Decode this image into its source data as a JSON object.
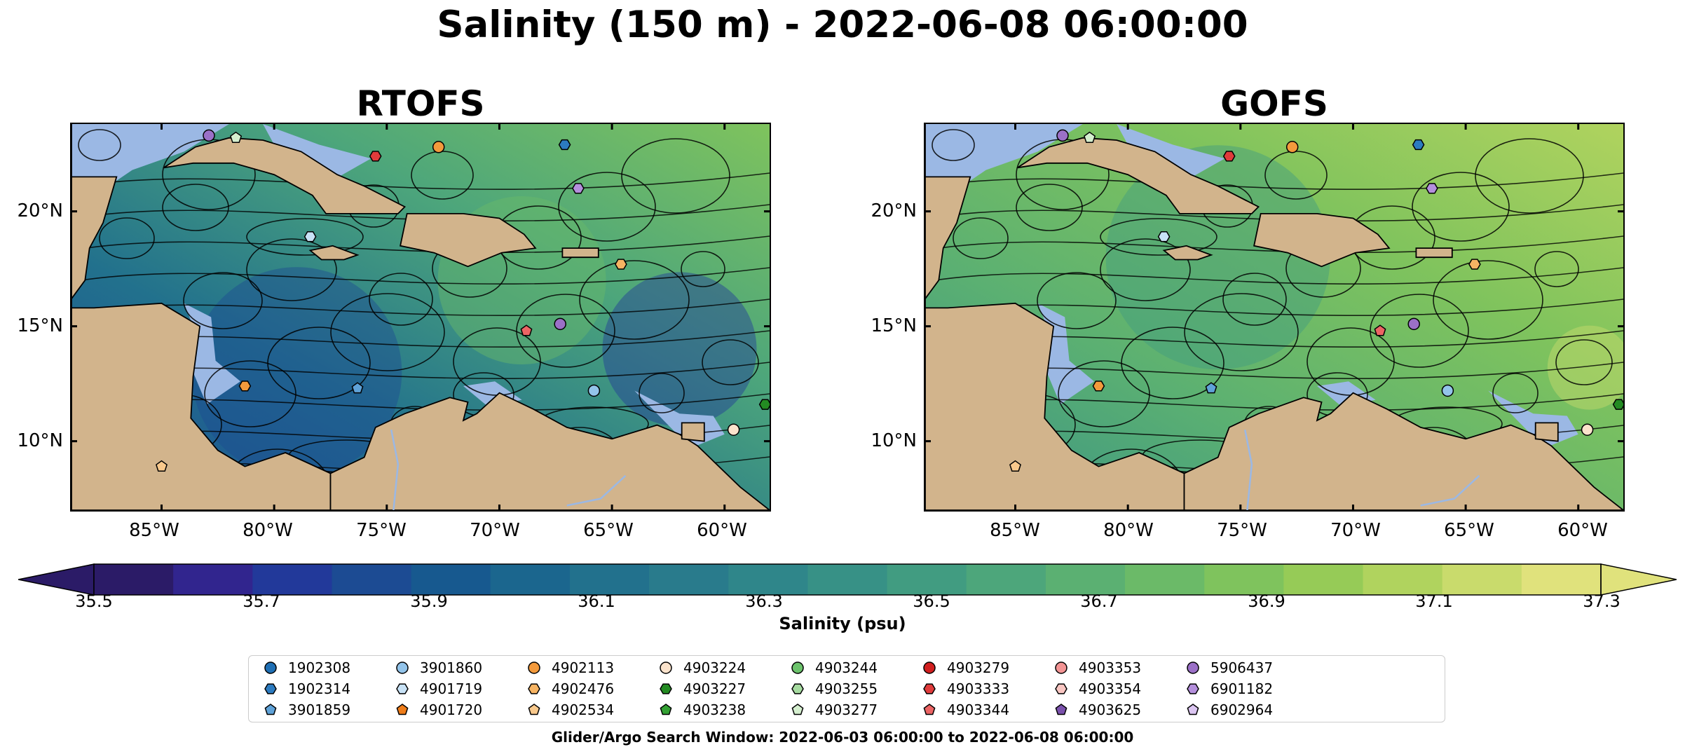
{
  "figure": {
    "title": "Salinity (150 m) - 2022-06-08 06:00:00",
    "panels": [
      {
        "title": "RTOFS",
        "ocean_tint": "#2a6f8f"
      },
      {
        "title": "GOFS",
        "ocean_tint": "#4aa67c"
      }
    ],
    "x_ticks": [
      "85°W",
      "80°W",
      "75°W",
      "70°W",
      "65°W",
      "60°W"
    ],
    "y_ticks": [
      "20°N",
      "15°N",
      "10°N"
    ]
  },
  "colorbar": {
    "label": "Salinity (psu)",
    "ticks": [
      "35.5",
      "35.7",
      "35.9",
      "36.1",
      "36.3",
      "36.5",
      "36.7",
      "36.9",
      "37.1",
      "37.3"
    ],
    "colors": [
      "#2b1b67",
      "#31258e",
      "#22399a",
      "#1c4b93",
      "#17598f",
      "#1b668e",
      "#22718d",
      "#297b8c",
      "#2f868a",
      "#379186",
      "#419c81",
      "#4da67b",
      "#5bb072",
      "#6bba68",
      "#7fc35d",
      "#96cb57",
      "#b0d35e",
      "#c9db6c",
      "#e0e27c"
    ]
  },
  "legend": {
    "items": [
      {
        "id": "1902308",
        "color": "#1f6fb4",
        "marker": "circle"
      },
      {
        "id": "1902314",
        "color": "#2c7bc0",
        "marker": "hexagon"
      },
      {
        "id": "3901859",
        "color": "#5fa2d8",
        "marker": "pentagon"
      },
      {
        "id": "3901860",
        "color": "#93c4ea",
        "marker": "circle"
      },
      {
        "id": "4901719",
        "color": "#c8e2f6",
        "marker": "hexagon"
      },
      {
        "id": "4901720",
        "color": "#ef7d1a",
        "marker": "pentagon"
      },
      {
        "id": "4902113",
        "color": "#f39a3c",
        "marker": "circle"
      },
      {
        "id": "4902476",
        "color": "#f7b463",
        "marker": "hexagon"
      },
      {
        "id": "4902534",
        "color": "#f9c98c",
        "marker": "pentagon"
      },
      {
        "id": "4903224",
        "color": "#fbe3cc",
        "marker": "circle"
      },
      {
        "id": "4903227",
        "color": "#238b22",
        "marker": "hexagon"
      },
      {
        "id": "4903238",
        "color": "#33a133",
        "marker": "pentagon"
      },
      {
        "id": "4903244",
        "color": "#6cc36c",
        "marker": "circle"
      },
      {
        "id": "4903255",
        "color": "#a6dba0",
        "marker": "hexagon"
      },
      {
        "id": "4903277",
        "color": "#d5efcf",
        "marker": "pentagon"
      },
      {
        "id": "4903279",
        "color": "#d11f1f",
        "marker": "circle"
      },
      {
        "id": "4903333",
        "color": "#e03b3b",
        "marker": "hexagon"
      },
      {
        "id": "4903344",
        "color": "#ec6464",
        "marker": "pentagon"
      },
      {
        "id": "4903353",
        "color": "#f39494",
        "marker": "circle"
      },
      {
        "id": "4903354",
        "color": "#f9c6c2",
        "marker": "hexagon"
      },
      {
        "id": "4903625",
        "color": "#7b52ad",
        "marker": "pentagon"
      },
      {
        "id": "5906437",
        "color": "#9b70c7",
        "marker": "circle"
      },
      {
        "id": "6901182",
        "color": "#b48fdc",
        "marker": "hexagon"
      },
      {
        "id": "6902964",
        "color": "#dcc6f2",
        "marker": "pentagon"
      }
    ]
  },
  "footer": {
    "text": "Glider/Argo Search Window: 2022-06-03 06:00:00 to 2022-06-08 06:00:00"
  },
  "map_colors": {
    "land": "#d2b48c",
    "shelf": "#9bb8e4",
    "pacific": "#2b1b67",
    "coast": "#000000"
  }
}
